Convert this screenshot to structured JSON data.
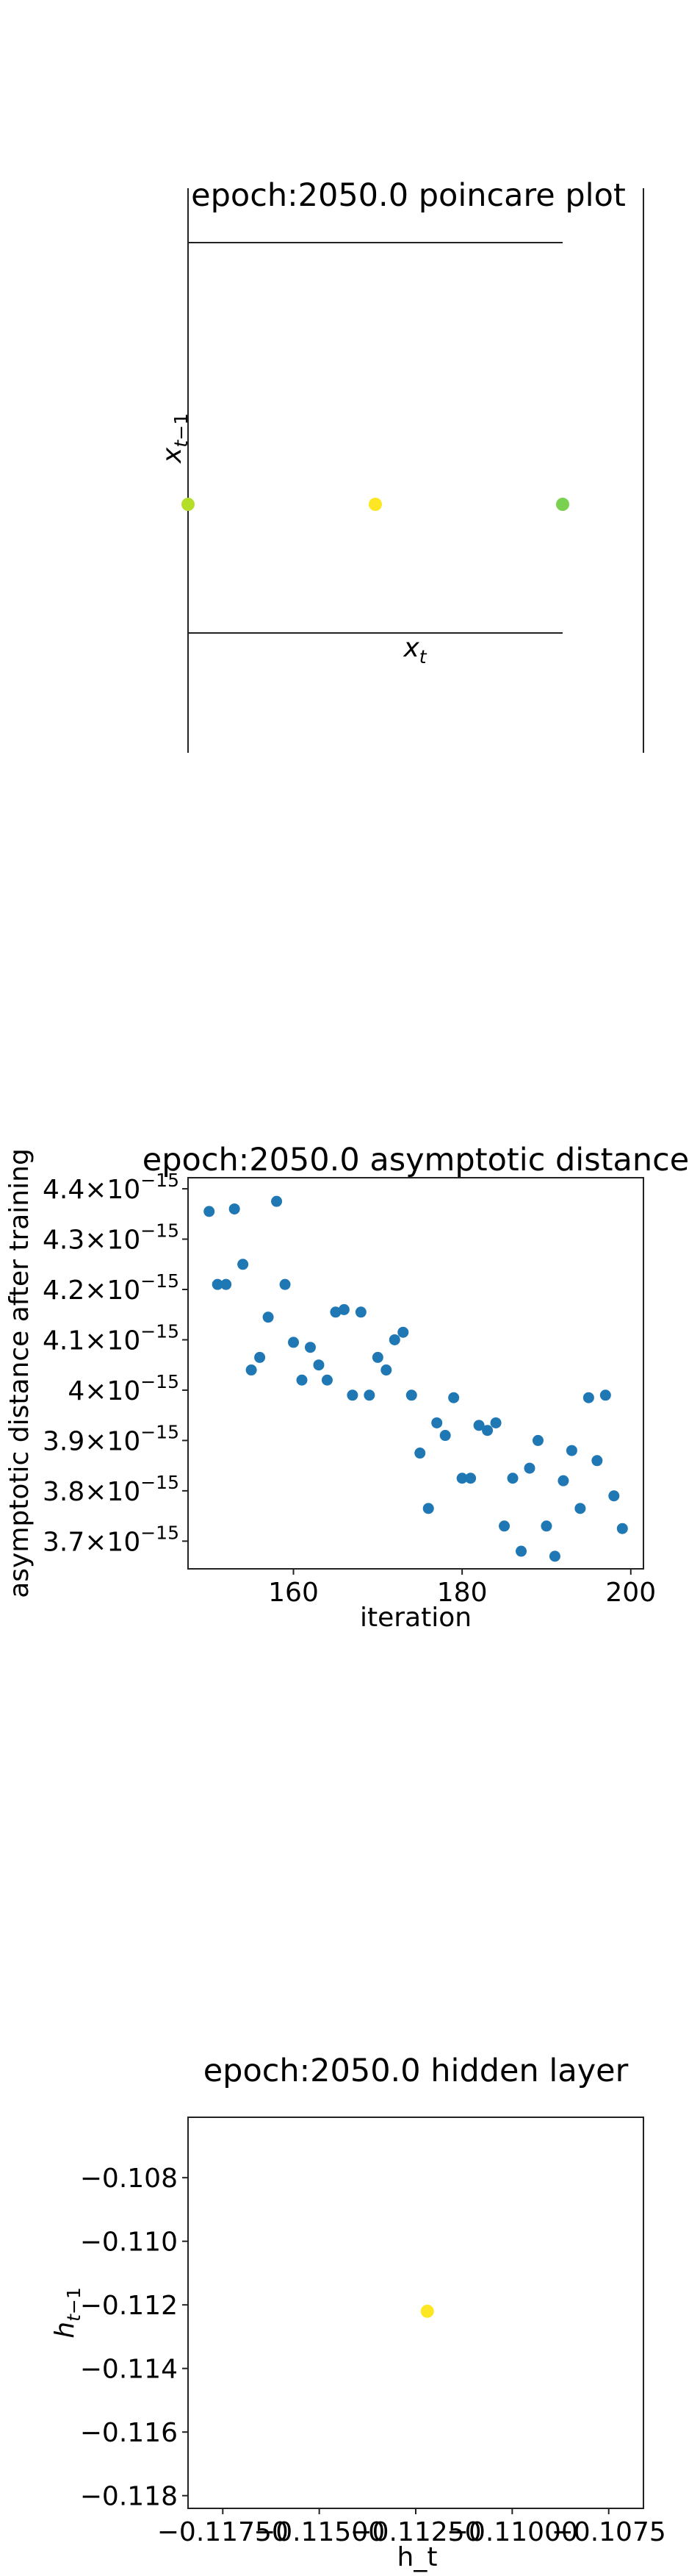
{
  "chart_data": [
    {
      "type": "scatter",
      "title": "epoch:2050.0 poincare plot",
      "xlabel": "x_t",
      "ylabel": "x_{t-1}",
      "points": [
        {
          "x": 0.0,
          "y": 0.0,
          "color": "#b5de2b"
        },
        {
          "x": 0.5,
          "y": 0.0,
          "color": "#fde725"
        },
        {
          "x": 1.0,
          "y": 0.0,
          "color": "#7ad151"
        }
      ],
      "xlim": [
        0,
        1.0
      ],
      "grid": false
    },
    {
      "type": "scatter",
      "title": "epoch:2050.0 asymptotic distance",
      "xlabel": "iteration",
      "ylabel": "asymptotic distance after training",
      "xticks": [
        "160",
        "180",
        "200"
      ],
      "yticks": [
        {
          "base": "3.7",
          "exp": "−15",
          "value": 3.7
        },
        {
          "base": "3.8",
          "exp": "−15",
          "value": 3.8
        },
        {
          "base": "3.9",
          "exp": "−15",
          "value": 3.9
        },
        {
          "base": "4",
          "exp": "−15",
          "value": 4.0
        },
        {
          "base": "4.1",
          "exp": "−15",
          "value": 4.1
        },
        {
          "base": "4.2",
          "exp": "−15",
          "value": 4.2
        },
        {
          "base": "4.3",
          "exp": "−15",
          "value": 4.3
        },
        {
          "base": "4.4",
          "exp": "−15",
          "value": 4.4
        }
      ],
      "y_unit": "1e-15",
      "xlim": [
        147.5,
        201.5
      ],
      "ylim": [
        3.645,
        4.422
      ],
      "color": "#1f77b4",
      "points": [
        [
          150,
          4.355
        ],
        [
          151,
          4.21
        ],
        [
          152,
          4.21
        ],
        [
          153,
          4.36
        ],
        [
          154,
          4.25
        ],
        [
          155,
          4.04
        ],
        [
          156,
          4.065
        ],
        [
          157,
          4.145
        ],
        [
          158,
          4.375
        ],
        [
          159,
          4.21
        ],
        [
          160,
          4.095
        ],
        [
          161,
          4.02
        ],
        [
          162,
          4.085
        ],
        [
          163,
          4.05
        ],
        [
          164,
          4.02
        ],
        [
          165,
          4.155
        ],
        [
          166,
          4.16
        ],
        [
          167,
          3.99
        ],
        [
          168,
          4.155
        ],
        [
          169,
          3.99
        ],
        [
          170,
          4.065
        ],
        [
          171,
          4.04
        ],
        [
          172,
          4.1
        ],
        [
          173,
          4.115
        ],
        [
          174,
          3.99
        ],
        [
          175,
          3.875
        ],
        [
          176,
          3.765
        ],
        [
          177,
          3.935
        ],
        [
          178,
          3.91
        ],
        [
          179,
          3.985
        ],
        [
          180,
          3.825
        ],
        [
          181,
          3.825
        ],
        [
          182,
          3.93
        ],
        [
          183,
          3.92
        ],
        [
          184,
          3.935
        ],
        [
          185,
          3.73
        ],
        [
          186,
          3.825
        ],
        [
          187,
          3.68
        ],
        [
          188,
          3.845
        ],
        [
          189,
          3.9
        ],
        [
          190,
          3.73
        ],
        [
          191,
          3.67
        ],
        [
          192,
          3.82
        ],
        [
          193,
          3.88
        ],
        [
          194,
          3.765
        ],
        [
          195,
          3.985
        ],
        [
          196,
          3.86
        ],
        [
          197,
          3.99
        ],
        [
          198,
          3.79
        ],
        [
          199,
          3.725
        ]
      ],
      "grid": false
    },
    {
      "type": "scatter",
      "title": "epoch:2050.0 hidden layer",
      "xlabel": "h_t",
      "ylabel": "h_{t-1}",
      "xticks": [
        "−0.11750",
        "−0.11500",
        "−0.11250",
        "−0.11000",
        "−0.1075"
      ],
      "xtick_values": [
        -0.1175,
        -0.115,
        -0.1125,
        -0.11,
        -0.1075
      ],
      "yticks": [
        "−0.108",
        "−0.110",
        "−0.112",
        "−0.114",
        "−0.116",
        "−0.118"
      ],
      "ytick_values": [
        -0.108,
        -0.11,
        -0.112,
        -0.114,
        -0.116,
        -0.118
      ],
      "xlim": [
        -0.1184,
        -0.1066
      ],
      "ylim": [
        -0.1184,
        -0.1061
      ],
      "points": [
        {
          "x": -0.1122,
          "y": -0.1122,
          "color": "#fde725"
        }
      ],
      "grid": false
    }
  ]
}
